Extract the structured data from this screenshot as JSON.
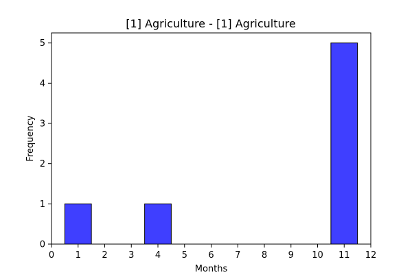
{
  "chart_data": {
    "type": "bar",
    "title": "[1] Agriculture - [1] Agriculture",
    "xlabel": "Months",
    "ylabel": "Frequency",
    "xlim": [
      0,
      12
    ],
    "ylim": [
      0,
      5.25
    ],
    "x_ticks": [
      "0",
      "1",
      "2",
      "3",
      "4",
      "5",
      "6",
      "7",
      "8",
      "9",
      "10",
      "11",
      "12"
    ],
    "y_ticks": [
      "0",
      "1",
      "2",
      "3",
      "4",
      "5"
    ],
    "bars": [
      {
        "x_start": 0.5,
        "x_end": 1.5,
        "value": 1
      },
      {
        "x_start": 3.5,
        "x_end": 4.5,
        "value": 1
      },
      {
        "x_start": 10.5,
        "x_end": 11.5,
        "value": 5
      }
    ],
    "grid": false,
    "colors": {
      "bar_fill": "#3f3fff",
      "bar_edge": "#000000",
      "axis": "#000000"
    }
  }
}
